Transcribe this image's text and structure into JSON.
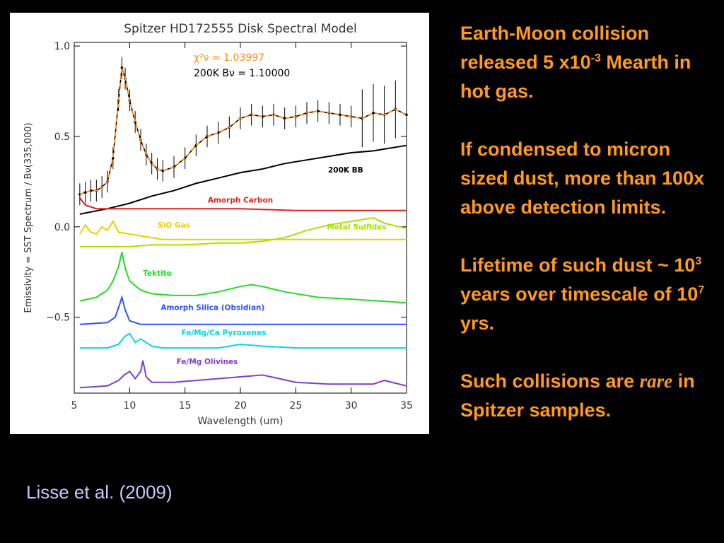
{
  "slide": {
    "citation": "Lisse et al. (2009)",
    "text": {
      "p1_a": "Earth-Moon collision released 5 x10",
      "p1_sup": "-3",
      "p1_b": " Mearth in hot gas.",
      "p2": "If condensed to micron sized dust, more than  100x above detection limits.",
      "p3_a": "Lifetime of such dust ~ 10",
      "p3_sup1": "3",
      "p3_b": " years over timescale of 10",
      "p3_sup2": "7",
      "p3_c": " yrs.",
      "p4_a": "Such collisions are ",
      "p4_italic": "rare",
      "p4_b": " in Spitzer samples."
    },
    "colors": {
      "background": "#000000",
      "text": "#ff9a1f",
      "citation": "#c8c8ff"
    }
  },
  "chart_data": {
    "type": "line",
    "title": "Spitzer HD172555 Disk Spectral Model",
    "xlabel": "Wavelength (um)",
    "ylabel": "Emissivity = SST Spectrum / Bν(335,000)",
    "xlim": [
      5,
      35
    ],
    "ylim": [
      -0.92,
      1.02
    ],
    "xticks": [
      5,
      10,
      15,
      20,
      25,
      30,
      35
    ],
    "yticks": [
      1.0,
      0.5,
      0.0,
      -0.5
    ],
    "ytick_labels": [
      "1.0",
      "0.5",
      "0.0",
      "−0.5"
    ],
    "legend": [
      {
        "text": "χ²ν = 1.03997",
        "color": "#ff8c1a"
      },
      {
        "text": "200K Bν  = 1.10000",
        "color": "#000000"
      }
    ],
    "series": [
      {
        "name": "200K BB",
        "color": "#000000",
        "style": "line",
        "x": [
          5.5,
          8,
          10,
          12,
          14,
          16,
          18,
          20,
          22,
          24,
          26,
          28,
          30,
          32,
          35
        ],
        "y": [
          0.07,
          0.1,
          0.13,
          0.17,
          0.2,
          0.24,
          0.27,
          0.3,
          0.32,
          0.35,
          0.37,
          0.39,
          0.41,
          0.42,
          0.45
        ]
      },
      {
        "name": "Amorph Carbon",
        "color": "#e02020",
        "style": "line",
        "x": [
          5.5,
          6,
          7,
          8,
          10,
          15,
          20,
          25,
          30,
          35
        ],
        "y": [
          0.16,
          0.12,
          0.1,
          0.1,
          0.1,
          0.1,
          0.1,
          0.09,
          0.09,
          0.09
        ]
      },
      {
        "name": "SiO Gas",
        "color": "#e8d000",
        "style": "line",
        "x": [
          5.5,
          6,
          6.5,
          7,
          7.5,
          8,
          8.5,
          9,
          10,
          11,
          12,
          13,
          15,
          20,
          25,
          30,
          35
        ],
        "y": [
          -0.04,
          0.01,
          -0.03,
          -0.04,
          0.0,
          -0.02,
          0.03,
          -0.03,
          -0.04,
          -0.05,
          -0.06,
          -0.07,
          -0.07,
          -0.07,
          -0.07,
          -0.07,
          -0.07
        ]
      },
      {
        "name": "Metal Sulfides",
        "color": "#a8e000",
        "style": "line",
        "x": [
          5.5,
          8,
          10,
          12,
          15,
          18,
          20,
          22,
          24,
          26,
          28,
          30,
          32,
          33,
          35
        ],
        "y": [
          -0.11,
          -0.11,
          -0.11,
          -0.1,
          -0.1,
          -0.09,
          -0.09,
          -0.08,
          -0.06,
          -0.02,
          0.01,
          0.03,
          0.05,
          0.02,
          -0.01
        ]
      },
      {
        "name": "Tektite",
        "color": "#22dd22",
        "style": "line",
        "x": [
          5.5,
          7,
          8,
          8.5,
          9,
          9.3,
          9.6,
          10,
          11,
          12,
          14,
          16,
          18,
          20,
          21,
          22,
          24,
          27,
          30,
          35
        ],
        "y": [
          -0.41,
          -0.39,
          -0.35,
          -0.3,
          -0.22,
          -0.14,
          -0.23,
          -0.3,
          -0.35,
          -0.37,
          -0.38,
          -0.38,
          -0.36,
          -0.33,
          -0.32,
          -0.33,
          -0.36,
          -0.39,
          -0.4,
          -0.42
        ]
      },
      {
        "name": "Amorph Silica (Obsidian)",
        "color": "#3050ff",
        "style": "line",
        "x": [
          5.5,
          8,
          8.7,
          9.1,
          9.3,
          9.6,
          10,
          11,
          14,
          18,
          20,
          22,
          25,
          30,
          35
        ],
        "y": [
          -0.54,
          -0.53,
          -0.5,
          -0.43,
          -0.39,
          -0.46,
          -0.52,
          -0.54,
          -0.54,
          -0.54,
          -0.54,
          -0.54,
          -0.54,
          -0.54,
          -0.54
        ]
      },
      {
        "name": "Fe/Mg/Ca Pyroxenes",
        "color": "#00d8e8",
        "style": "line",
        "x": [
          5.5,
          8,
          9,
          9.5,
          10,
          10.5,
          11,
          11.5,
          12,
          13,
          15,
          18,
          20,
          22,
          25,
          30,
          35
        ],
        "y": [
          -0.67,
          -0.67,
          -0.65,
          -0.61,
          -0.59,
          -0.64,
          -0.62,
          -0.64,
          -0.66,
          -0.67,
          -0.67,
          -0.67,
          -0.65,
          -0.66,
          -0.67,
          -0.67,
          -0.67
        ]
      },
      {
        "name": "Fe/Mg Olivines",
        "color": "#7a3fd0",
        "style": "line",
        "x": [
          5.5,
          8,
          9,
          9.5,
          10,
          10.5,
          11,
          11.2,
          11.5,
          12,
          14,
          16,
          18,
          20,
          22,
          23.5,
          25,
          28,
          32,
          33,
          35
        ],
        "y": [
          -0.89,
          -0.88,
          -0.85,
          -0.82,
          -0.8,
          -0.84,
          -0.8,
          -0.74,
          -0.83,
          -0.86,
          -0.86,
          -0.85,
          -0.84,
          -0.83,
          -0.82,
          -0.84,
          -0.86,
          -0.87,
          -0.87,
          -0.85,
          -0.88
        ]
      },
      {
        "name": "SST spectrum",
        "color": "#000000",
        "style": "noisy",
        "x": [
          5.5,
          6,
          6.5,
          7,
          7.5,
          8,
          8.5,
          9,
          9.3,
          9.6,
          10,
          10.5,
          11,
          11.5,
          12,
          12.5,
          13,
          14,
          15,
          16,
          17,
          18,
          19,
          20,
          21,
          22,
          23,
          24,
          25,
          26,
          27,
          28,
          29,
          30,
          31,
          32,
          33,
          34,
          35
        ],
        "y": [
          0.18,
          0.19,
          0.2,
          0.2,
          0.22,
          0.25,
          0.38,
          0.7,
          0.88,
          0.82,
          0.7,
          0.58,
          0.48,
          0.4,
          0.35,
          0.32,
          0.31,
          0.33,
          0.38,
          0.45,
          0.5,
          0.52,
          0.55,
          0.6,
          0.62,
          0.61,
          0.62,
          0.6,
          0.61,
          0.63,
          0.64,
          0.63,
          0.62,
          0.61,
          0.6,
          0.63,
          0.62,
          0.65,
          0.62
        ]
      },
      {
        "name": "Model fit",
        "color": "#ff8c1a",
        "style": "dashed",
        "x": [
          5.5,
          6,
          6.5,
          7,
          7.5,
          8,
          8.5,
          9,
          9.3,
          9.6,
          10,
          10.5,
          11,
          11.5,
          12,
          12.5,
          13,
          14,
          15,
          16,
          17,
          18,
          19,
          20,
          21,
          22,
          23,
          24,
          25,
          26,
          27,
          28,
          29,
          30,
          31,
          32,
          33,
          34,
          35
        ],
        "y": [
          0.18,
          0.19,
          0.2,
          0.2,
          0.22,
          0.25,
          0.38,
          0.7,
          0.88,
          0.82,
          0.7,
          0.58,
          0.48,
          0.4,
          0.35,
          0.32,
          0.31,
          0.33,
          0.38,
          0.45,
          0.5,
          0.52,
          0.55,
          0.6,
          0.62,
          0.61,
          0.62,
          0.6,
          0.61,
          0.63,
          0.64,
          0.63,
          0.62,
          0.61,
          0.6,
          0.63,
          0.62,
          0.65,
          0.62
        ]
      }
    ],
    "annotations": [
      {
        "text": "200K BB",
        "color": "#000000",
        "x": 29.5,
        "y": 0.3
      },
      {
        "text": "Amorph Carbon",
        "color": "#e02020",
        "x": 20,
        "y": 0.135
      },
      {
        "text": "SiO Gas",
        "color": "#e8d000",
        "x": 14,
        "y": -0.005
      },
      {
        "text": "Metal Sulfides",
        "color": "#a8e000",
        "x": 30.5,
        "y": -0.015
      },
      {
        "text": "Tektite",
        "color": "#22dd22",
        "x": 12.5,
        "y": -0.27
      },
      {
        "text": "Amorph Silica (Obsidian)",
        "color": "#3050ff",
        "x": 17.5,
        "y": -0.46
      },
      {
        "text": "Fe/Mg/Ca Pyroxenes",
        "color": "#00d8e8",
        "x": 18.5,
        "y": -0.6
      },
      {
        "text": "Fe/Mg Olivines",
        "color": "#7a3fd0",
        "x": 17,
        "y": -0.76
      }
    ],
    "grid": false
  }
}
